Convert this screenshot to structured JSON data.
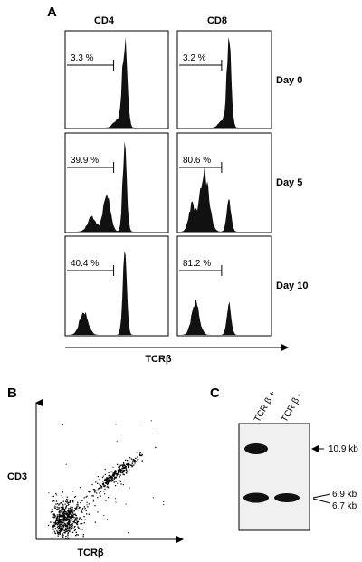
{
  "panelA": {
    "letter": "A",
    "columns": [
      "CD4",
      "CD8"
    ],
    "rows": [
      "Day 0",
      "Day 5",
      "Day 10"
    ],
    "gates": [
      [
        "3.3 %",
        "3.2 %"
      ],
      [
        "39.9 %",
        "80.6 %"
      ],
      [
        "40.4 %",
        "81.2 %"
      ]
    ],
    "xlabel": "TCRβ"
  },
  "panelB": {
    "letter": "B",
    "ylabel": "CD3",
    "xlabel": "TCRβ"
  },
  "panelC": {
    "letter": "C",
    "lanes": [
      "TCR β +",
      "TCR β -"
    ],
    "bands": [
      "10.9 kb",
      "6.9 kb",
      "6.7 kb"
    ]
  }
}
